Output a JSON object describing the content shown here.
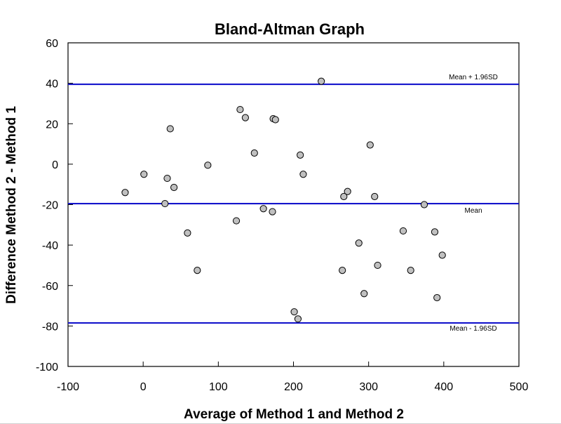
{
  "chart_data": {
    "type": "scatter",
    "title": "Bland-Altman Graph",
    "xlabel": "Average of Method 1 and Method 2",
    "ylabel": "Difference Method 2 - Method 1",
    "xlim": [
      -100,
      500
    ],
    "ylim": [
      -100,
      60
    ],
    "xticks": [
      -100,
      0,
      100,
      200,
      300,
      400,
      500
    ],
    "yticks": [
      -100,
      -80,
      -60,
      -40,
      -20,
      0,
      20,
      40,
      60
    ],
    "grid": false,
    "reference_lines": [
      {
        "label": "Mean + 1.96SD",
        "y": 39.5,
        "color": "#1515cc"
      },
      {
        "label": "Mean",
        "y": -19.5,
        "color": "#1515cc"
      },
      {
        "label": "Mean - 1.96SD",
        "y": -78.5,
        "color": "#1515cc"
      }
    ],
    "marker_fill": "#c0c0c0",
    "marker_stroke": "#000000",
    "points": [
      {
        "x": 237,
        "y": 41
      },
      {
        "x": 129,
        "y": 27
      },
      {
        "x": 136,
        "y": 23
      },
      {
        "x": 173,
        "y": 22.5
      },
      {
        "x": 176,
        "y": 22
      },
      {
        "x": 36,
        "y": 17.5
      },
      {
        "x": 302,
        "y": 9.5
      },
      {
        "x": 148,
        "y": 5.5
      },
      {
        "x": 209,
        "y": 4.5
      },
      {
        "x": 86,
        "y": -0.5
      },
      {
        "x": 1,
        "y": -5
      },
      {
        "x": 213,
        "y": -5
      },
      {
        "x": 32,
        "y": -7
      },
      {
        "x": 41,
        "y": -11.5
      },
      {
        "x": -24,
        "y": -14
      },
      {
        "x": 272,
        "y": -13.5
      },
      {
        "x": 267,
        "y": -16
      },
      {
        "x": 308,
        "y": -16
      },
      {
        "x": 29,
        "y": -19.5
      },
      {
        "x": 374,
        "y": -20
      },
      {
        "x": 160,
        "y": -22
      },
      {
        "x": 172,
        "y": -23.5
      },
      {
        "x": 124,
        "y": -28
      },
      {
        "x": 59,
        "y": -34
      },
      {
        "x": 346,
        "y": -33
      },
      {
        "x": 388,
        "y": -33.5
      },
      {
        "x": 287,
        "y": -39
      },
      {
        "x": 398,
        "y": -45
      },
      {
        "x": 312,
        "y": -50
      },
      {
        "x": 72,
        "y": -52.5
      },
      {
        "x": 265,
        "y": -52.5
      },
      {
        "x": 356,
        "y": -52.5
      },
      {
        "x": 294,
        "y": -64
      },
      {
        "x": 391,
        "y": -66
      },
      {
        "x": 201,
        "y": -73
      },
      {
        "x": 206,
        "y": -76.5
      }
    ]
  }
}
